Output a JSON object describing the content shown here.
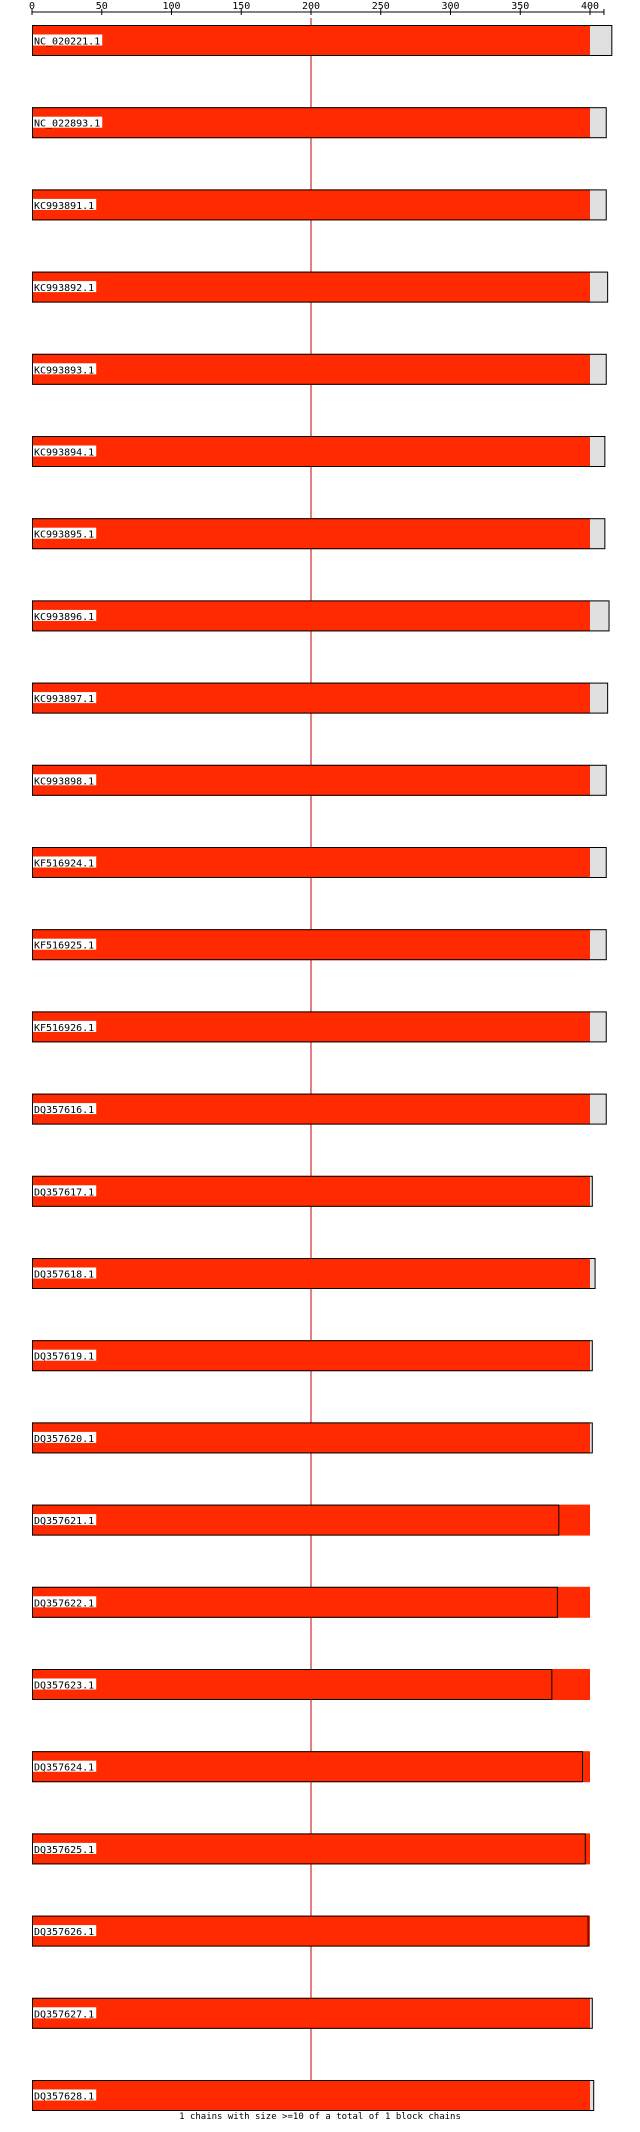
{
  "chart_data": {
    "type": "bar",
    "xlim": [
      0,
      410
    ],
    "ticks": [
      0,
      50,
      100,
      150,
      200,
      250,
      300,
      350,
      400
    ],
    "reference_line": 200,
    "block_end": 400,
    "colors": {
      "block": "#ff2a00",
      "remainder": "#e0e0e0",
      "reference_line": "#cc0000",
      "outline": "#000000"
    },
    "series": [
      {
        "name": "NC_020221.1",
        "length": 416
      },
      {
        "name": "NC_022893.1",
        "length": 412
      },
      {
        "name": "KC993891.1",
        "length": 412
      },
      {
        "name": "KC993892.1",
        "length": 413
      },
      {
        "name": "KC993893.1",
        "length": 412
      },
      {
        "name": "KC993894.1",
        "length": 411
      },
      {
        "name": "KC993895.1",
        "length": 411
      },
      {
        "name": "KC993896.1",
        "length": 414
      },
      {
        "name": "KC993897.1",
        "length": 413
      },
      {
        "name": "KC993898.1",
        "length": 412
      },
      {
        "name": "KF516924.1",
        "length": 412
      },
      {
        "name": "KF516925.1",
        "length": 412
      },
      {
        "name": "KF516926.1",
        "length": 412
      },
      {
        "name": "DQ357616.1",
        "length": 412
      },
      {
        "name": "DQ357617.1",
        "length": 402
      },
      {
        "name": "DQ357618.1",
        "length": 404
      },
      {
        "name": "DQ357619.1",
        "length": 402
      },
      {
        "name": "DQ357620.1",
        "length": 402
      },
      {
        "name": "DQ357621.1",
        "length": 378
      },
      {
        "name": "DQ357622.1",
        "length": 377
      },
      {
        "name": "DQ357623.1",
        "length": 373
      },
      {
        "name": "DQ357624.1",
        "length": 395
      },
      {
        "name": "DQ357625.1",
        "length": 397
      },
      {
        "name": "DQ357626.1",
        "length": 399
      },
      {
        "name": "DQ357627.1",
        "length": 402
      },
      {
        "name": "DQ357628.1",
        "length": 403
      }
    ]
  },
  "footer": "1 chains with size >=10 of a total of 1 block chains"
}
